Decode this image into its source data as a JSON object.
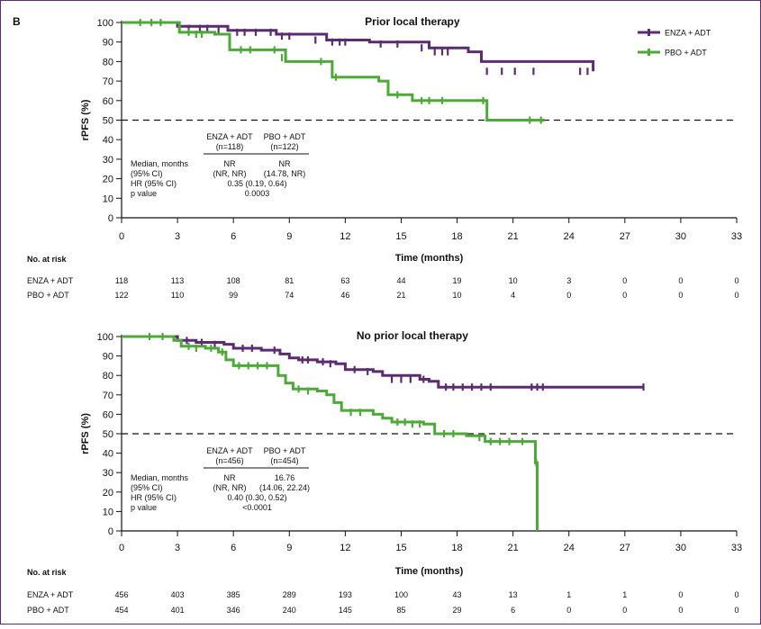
{
  "panel_label": "B",
  "colors": {
    "enza": "#5b2c6f",
    "pbo": "#4ea83a",
    "text": "#111111",
    "frame": "#5b2c6f"
  },
  "legend": [
    {
      "key": "enza",
      "label": "ENZA + ADT"
    },
    {
      "key": "pbo",
      "label": "PBO + ADT"
    }
  ],
  "risk_table": {
    "title": "No. at risk",
    "rows": [
      {
        "key": "enza",
        "label": "ENZA + ADT"
      },
      {
        "key": "pbo",
        "label": "PBO + ADT"
      }
    ]
  },
  "chart_data": [
    {
      "type": "line",
      "title": "Prior local therapy",
      "xlabel": "Time (months)",
      "ylabel": "rPFS (%)",
      "xlim": [
        0,
        33
      ],
      "ylim": [
        0,
        100
      ],
      "xticks": [
        0,
        3,
        6,
        9,
        12,
        15,
        18,
        21,
        24,
        27,
        30,
        33
      ],
      "yticks": [
        0,
        10,
        20,
        30,
        40,
        50,
        60,
        70,
        80,
        90,
        100
      ],
      "reference_line": {
        "y": 50,
        "style": "dashed"
      },
      "series": [
        {
          "name": "ENZA + ADT",
          "key": "enza",
          "x": [
            0,
            2.7,
            3.0,
            5.7,
            8.3,
            11.0,
            13.3,
            16.5,
            18.6,
            19.3,
            25.3
          ],
          "y": [
            100,
            100,
            98,
            96,
            94,
            91,
            90,
            87,
            85,
            80,
            75
          ],
          "censored": [
            [
              3.6,
              97
            ],
            [
              4.2,
              97
            ],
            [
              4.6,
              97
            ],
            [
              5.2,
              96
            ],
            [
              6.2,
              95
            ],
            [
              6.6,
              95
            ],
            [
              7.2,
              95
            ],
            [
              8.0,
              95
            ],
            [
              8.6,
              93
            ],
            [
              9.0,
              93
            ],
            [
              10.4,
              91
            ],
            [
              11.3,
              90
            ],
            [
              11.7,
              90
            ],
            [
              12.0,
              90
            ],
            [
              13.9,
              89
            ],
            [
              14.8,
              89
            ],
            [
              16.1,
              87
            ],
            [
              16.8,
              85
            ],
            [
              17.2,
              85
            ],
            [
              17.5,
              85
            ],
            [
              19.6,
              75
            ],
            [
              20.4,
              75
            ],
            [
              21.1,
              75
            ],
            [
              22.1,
              75
            ],
            [
              24.6,
              75
            ],
            [
              25.0,
              75
            ]
          ]
        },
        {
          "name": "PBO + ADT",
          "key": "pbo",
          "x": [
            0,
            2.5,
            3.1,
            5.0,
            5.8,
            8.4,
            8.8,
            11.2,
            11.3,
            13.8,
            14.3,
            15.6,
            19.6,
            22.7
          ],
          "y": [
            100,
            100,
            95,
            94,
            86,
            86,
            80,
            80,
            72,
            70,
            63,
            60,
            50,
            50
          ],
          "censored": [
            [
              1.0,
              100
            ],
            [
              1.6,
              100
            ],
            [
              2.1,
              100
            ],
            [
              3.6,
              95
            ],
            [
              4.0,
              94
            ],
            [
              4.3,
              94
            ],
            [
              6.4,
              86
            ],
            [
              6.9,
              86
            ],
            [
              8.2,
              86
            ],
            [
              8.6,
              82
            ],
            [
              10.7,
              80
            ],
            [
              11.5,
              72
            ],
            [
              14.8,
              63
            ],
            [
              16.1,
              60
            ],
            [
              16.5,
              60
            ],
            [
              17.2,
              60
            ],
            [
              19.4,
              60
            ],
            [
              21.9,
              50
            ],
            [
              22.5,
              50
            ]
          ]
        }
      ],
      "stats_table": {
        "col_headers": [
          {
            "line1": "ENZA + ADT",
            "line2": "(n=118)"
          },
          {
            "line1": "PBO + ADT",
            "line2": "(n=122)"
          }
        ],
        "row_labels": [
          "Median, months",
          "(95% CI)",
          "HR (95% CI)",
          "p value"
        ],
        "median_values": [
          "NR",
          "NR"
        ],
        "ci_values": [
          "(NR, NR)",
          "(14.78, NR)"
        ],
        "hr": "0.35 (0.19, 0.64)",
        "p": "0.0003"
      },
      "risk_counts": {
        "enza": [
          "118",
          "113",
          "108",
          "81",
          "63",
          "44",
          "19",
          "10",
          "3",
          "0",
          "0",
          "0"
        ],
        "pbo": [
          "122",
          "110",
          "99",
          "74",
          "46",
          "21",
          "10",
          "4",
          "0",
          "0",
          "0",
          "0"
        ]
      }
    },
    {
      "type": "line",
      "title": "No prior local therapy",
      "xlabel": "Time (months)",
      "ylabel": "rPFS (%)",
      "xlim": [
        0,
        33
      ],
      "ylim": [
        0,
        100
      ],
      "xticks": [
        0,
        3,
        6,
        9,
        12,
        15,
        18,
        21,
        24,
        27,
        30,
        33
      ],
      "yticks": [
        0,
        10,
        20,
        30,
        40,
        50,
        60,
        70,
        80,
        90,
        100
      ],
      "reference_line": {
        "y": 50,
        "style": "dashed"
      },
      "series": [
        {
          "name": "ENZA + ADT",
          "key": "enza",
          "x": [
            0,
            2.5,
            3.0,
            4.0,
            5.5,
            6.0,
            7.5,
            8.5,
            9.0,
            9.5,
            10.5,
            11.5,
            12.0,
            13.5,
            14.0,
            16.0,
            16.5,
            17.0,
            28.0
          ],
          "y": [
            100,
            100,
            98,
            97,
            96,
            94,
            93,
            91,
            89,
            88,
            87,
            86,
            83,
            82,
            80,
            78,
            77,
            74,
            74
          ],
          "censored": [
            [
              3.5,
              98
            ],
            [
              4.3,
              97
            ],
            [
              5.0,
              96
            ],
            [
              6.5,
              94
            ],
            [
              7.0,
              94
            ],
            [
              8.2,
              93
            ],
            [
              9.7,
              88
            ],
            [
              10.0,
              88
            ],
            [
              10.8,
              87
            ],
            [
              11.2,
              86
            ],
            [
              12.5,
              83
            ],
            [
              13.2,
              82
            ],
            [
              14.5,
              78
            ],
            [
              15.0,
              78
            ],
            [
              15.5,
              78
            ],
            [
              16.2,
              78
            ],
            [
              17.4,
              74
            ],
            [
              17.8,
              74
            ],
            [
              18.3,
              74
            ],
            [
              18.8,
              74
            ],
            [
              19.3,
              74
            ],
            [
              19.8,
              74
            ],
            [
              22.0,
              74
            ],
            [
              22.3,
              74
            ],
            [
              22.6,
              74
            ],
            [
              28.0,
              74
            ]
          ]
        },
        {
          "name": "PBO + ADT",
          "key": "pbo",
          "x": [
            0,
            2.5,
            2.8,
            3.2,
            4.5,
            5.2,
            5.6,
            6.0,
            8.0,
            8.4,
            8.8,
            9.2,
            10.5,
            11.0,
            11.4,
            11.8,
            13.5,
            14.0,
            14.5,
            16.2,
            16.8,
            18.5,
            19.5,
            22.1,
            22.2,
            22.3
          ],
          "y": [
            100,
            100,
            98,
            95,
            94,
            92,
            88,
            85,
            85,
            80,
            76,
            73,
            72,
            70,
            66,
            62,
            60,
            58,
            56,
            55,
            50,
            49,
            46,
            46,
            35,
            0
          ],
          "censored": [
            [
              1.5,
              100
            ],
            [
              2.2,
              100
            ],
            [
              3.6,
              95
            ],
            [
              4.0,
              94
            ],
            [
              4.8,
              94
            ],
            [
              5.4,
              92
            ],
            [
              6.3,
              85
            ],
            [
              6.8,
              85
            ],
            [
              7.3,
              85
            ],
            [
              7.8,
              85
            ],
            [
              9.5,
              73
            ],
            [
              10.0,
              72
            ],
            [
              12.3,
              61
            ],
            [
              12.8,
              61
            ],
            [
              14.8,
              56
            ],
            [
              15.2,
              56
            ],
            [
              15.6,
              55
            ],
            [
              16.0,
              55
            ],
            [
              17.3,
              50
            ],
            [
              17.8,
              50
            ],
            [
              19.2,
              48
            ],
            [
              19.8,
              46
            ],
            [
              20.3,
              46
            ],
            [
              20.8,
              46
            ],
            [
              21.5,
              46
            ],
            [
              22.25,
              35
            ]
          ]
        }
      ],
      "stats_table": {
        "col_headers": [
          {
            "line1": "ENZA + ADT",
            "line2": "(n=456)"
          },
          {
            "line1": "PBO + ADT",
            "line2": "(n=454)"
          }
        ],
        "row_labels": [
          "Median, months",
          "(95% CI)",
          "HR (95% CI)",
          "p value"
        ],
        "median_values": [
          "NR",
          "16.76"
        ],
        "ci_values": [
          "(NR, NR)",
          "(14.06, 22.24)"
        ],
        "hr": "0.40 (0.30, 0.52)",
        "p": "<0.0001"
      },
      "risk_counts": {
        "enza": [
          "456",
          "403",
          "385",
          "289",
          "193",
          "100",
          "43",
          "13",
          "1",
          "1",
          "0",
          "0"
        ],
        "pbo": [
          "454",
          "401",
          "346",
          "240",
          "145",
          "85",
          "29",
          "6",
          "0",
          "0",
          "0",
          "0"
        ]
      }
    }
  ]
}
